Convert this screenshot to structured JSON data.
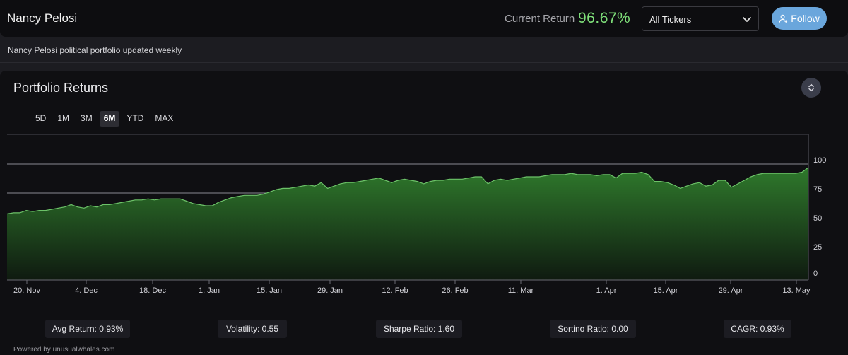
{
  "header": {
    "title": "Nancy Pelosi",
    "current_return_label": "Current Return",
    "current_return_value": "96.67%",
    "ticker_select_value": "All Tickers",
    "follow_label": "Follow"
  },
  "subtitle": "Nancy Pelosi political portfolio updated weekly",
  "card": {
    "title": "Portfolio Returns",
    "ranges": [
      "5D",
      "1M",
      "3M",
      "6M",
      "YTD",
      "MAX"
    ],
    "active_range": "6M"
  },
  "colors": {
    "accent_green": "#7fe07a",
    "follow_blue": "#6aa6dc",
    "area_fill": "#2e6a2c"
  },
  "chart_data": {
    "type": "area",
    "ylim": [
      0,
      100
    ],
    "y_ticks": [
      "100",
      "75",
      "50",
      "25",
      "0"
    ],
    "x_ticks": [
      "20. Nov",
      "4. Dec",
      "18. Dec",
      "1. Jan",
      "15. Jan",
      "29. Jan",
      "12. Feb",
      "26. Feb",
      "11. Mar",
      "1. Apr",
      "15. Apr",
      "29. Apr",
      "13. May"
    ],
    "values": [
      57,
      58,
      58,
      60,
      59,
      60,
      60,
      61,
      62,
      63,
      65,
      63,
      62,
      64,
      63,
      65,
      65,
      66,
      67,
      68,
      69,
      69,
      70,
      69,
      70,
      70,
      70,
      70,
      68,
      66,
      65,
      64,
      64,
      67,
      69,
      71,
      72,
      73,
      73,
      73,
      74,
      76,
      78,
      79,
      79,
      80,
      81,
      82,
      81,
      84,
      79,
      81,
      83,
      84,
      84,
      85,
      86,
      87,
      88,
      86,
      84,
      86,
      87,
      86,
      85,
      83,
      85,
      86,
      86,
      87,
      87,
      87,
      88,
      89,
      89,
      83,
      86,
      87,
      86,
      87,
      88,
      89,
      89,
      89,
      90,
      91,
      91,
      91,
      92,
      91,
      91,
      91,
      90,
      91,
      91,
      88,
      92,
      92,
      92,
      93,
      91,
      85,
      85,
      84,
      82,
      79,
      81,
      83,
      84,
      81,
      82,
      86,
      86,
      80,
      83,
      86,
      89,
      91,
      92,
      92,
      92,
      92,
      92,
      92,
      93,
      97
    ]
  },
  "stats": {
    "avg_return": "Avg Return: 0.93%",
    "volatility": "Volatility: 0.55",
    "sharpe": "Sharpe Ratio: 1.60",
    "sortino": "Sortino Ratio: 0.00",
    "cagr": "CAGR: 0.93%"
  },
  "powered_by": "Powered by unusualwhales.com"
}
